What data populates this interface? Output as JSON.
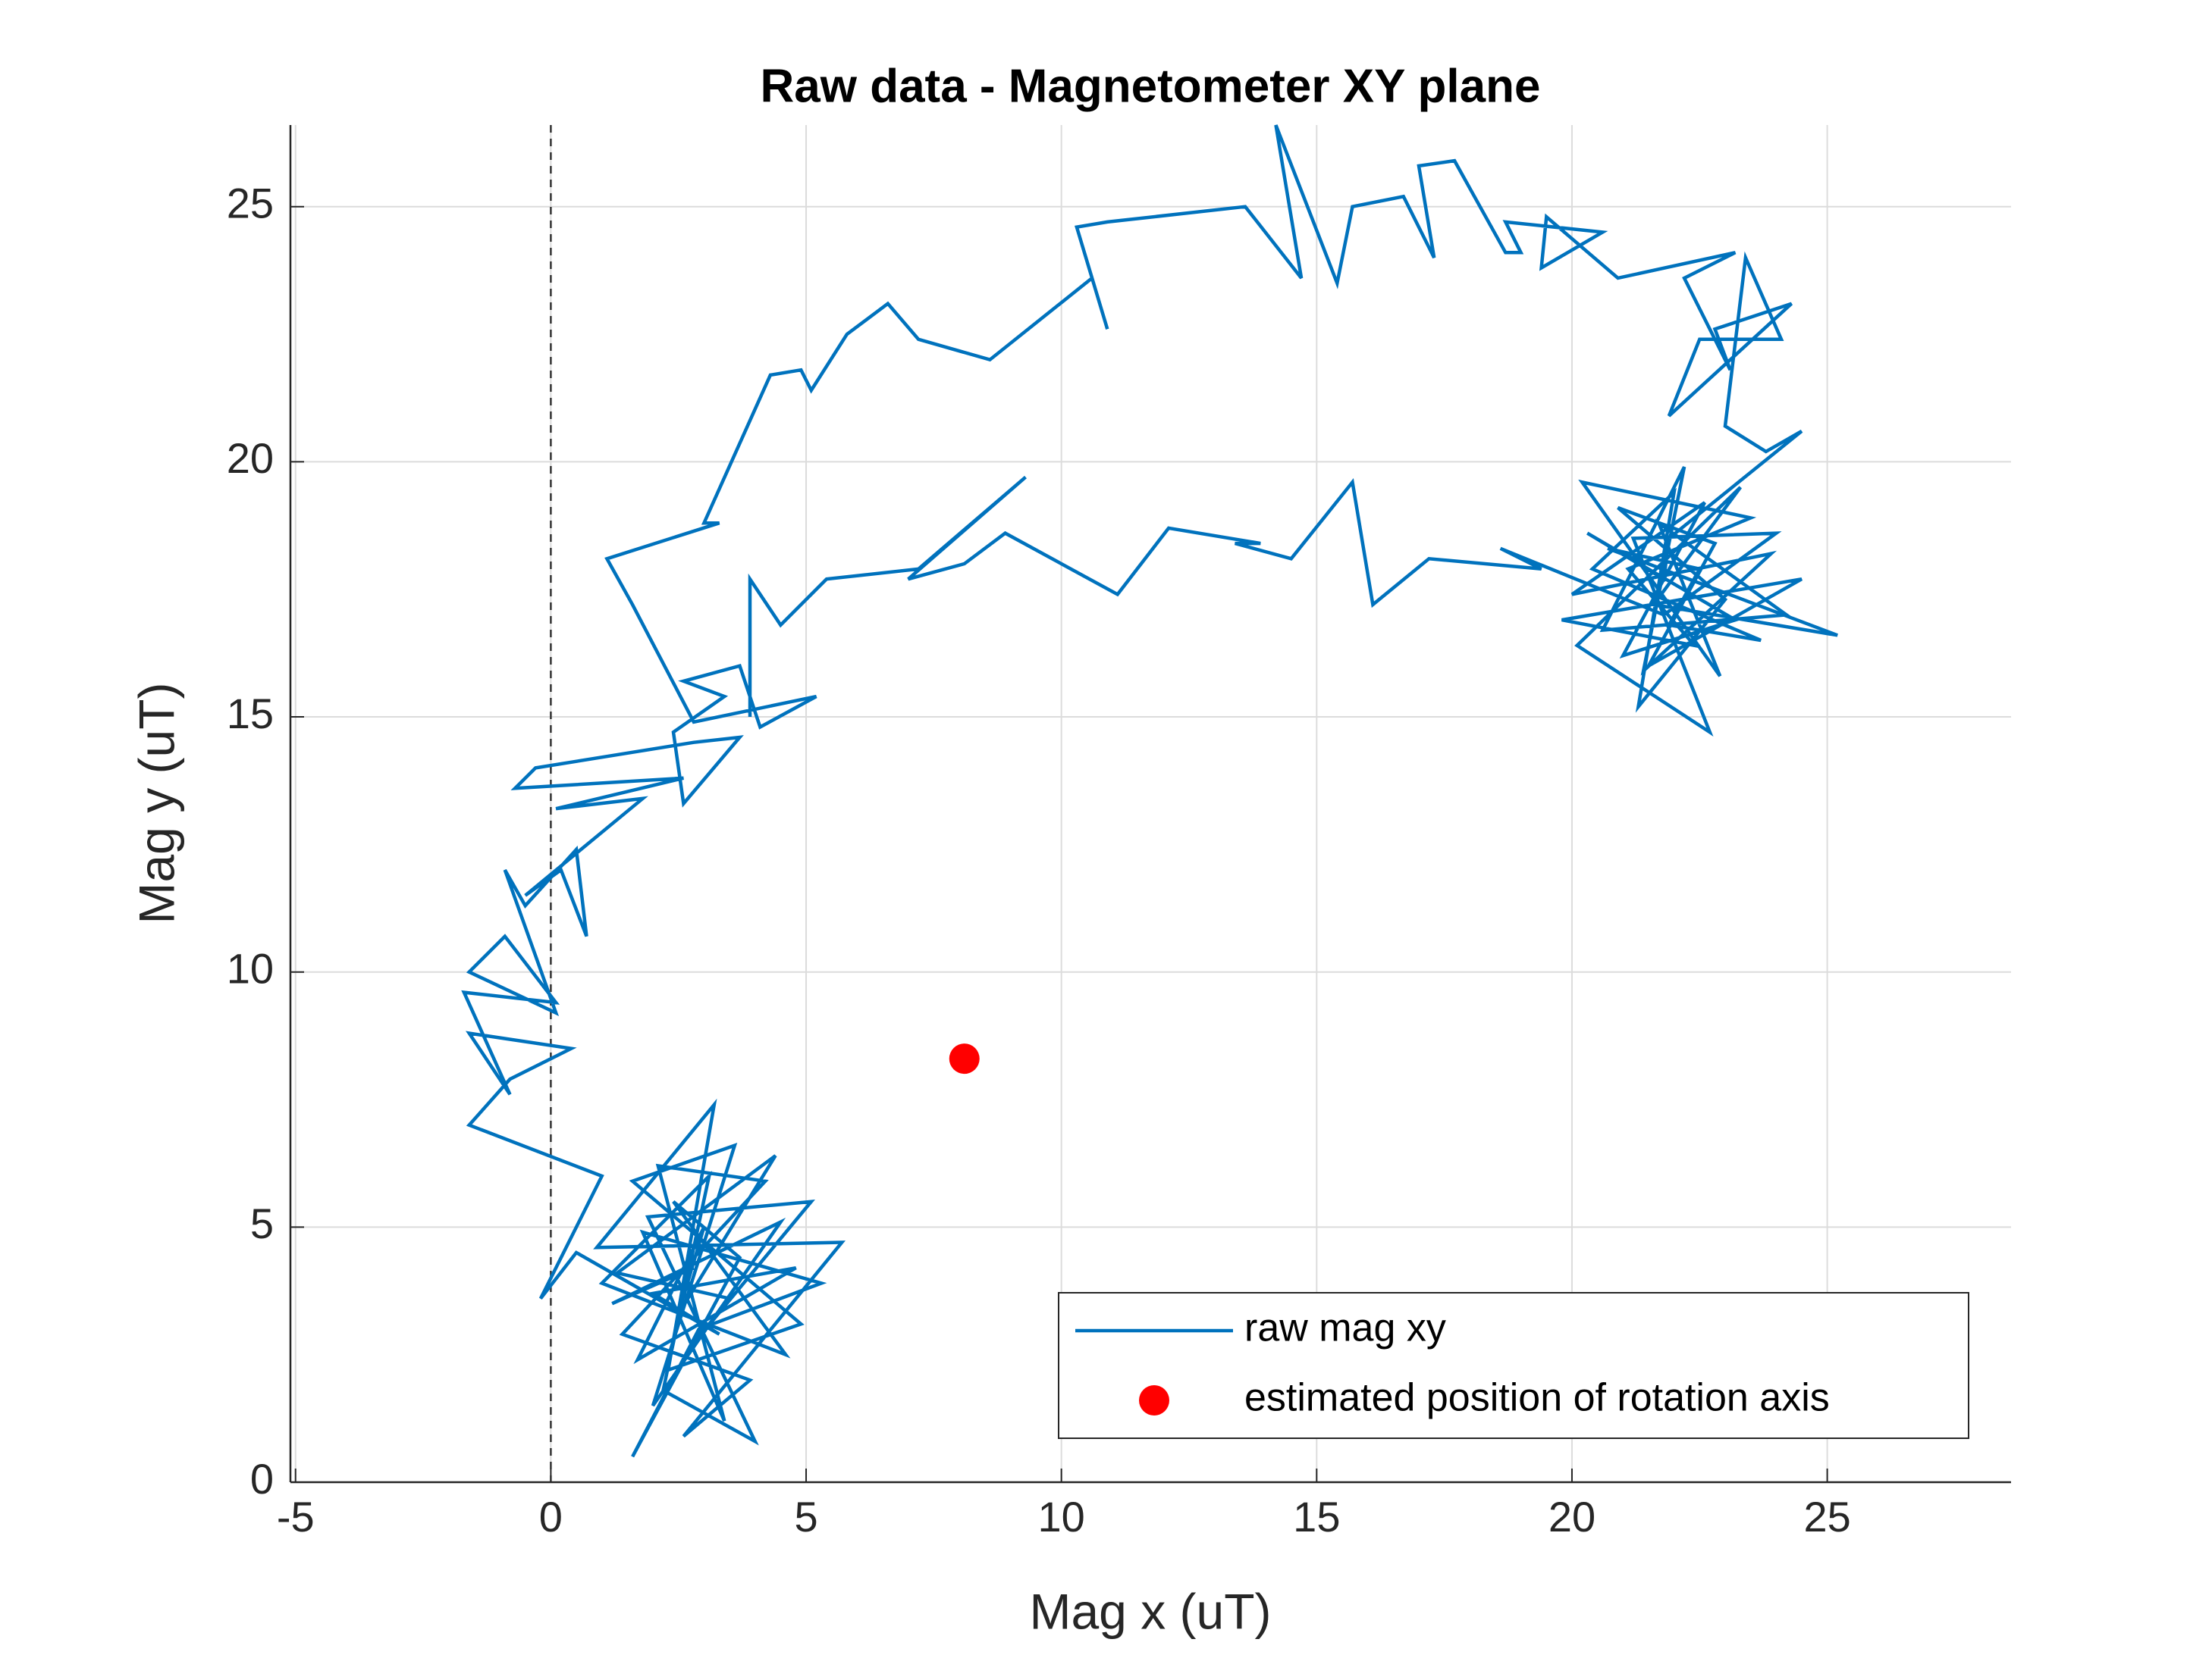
{
  "chart_data": {
    "type": "line",
    "title": "Raw data - Magnetometer XY plane",
    "xlabel": "Mag x (uT)",
    "ylabel": "Mag y (uT)",
    "xlim": [
      -5.1,
      28.6
    ],
    "ylim": [
      0,
      26.6
    ],
    "xticks": [
      -5,
      0,
      5,
      10,
      15,
      20,
      25
    ],
    "yticks": [
      0,
      5,
      10,
      15,
      20,
      25
    ],
    "grid": true,
    "legend": "southeast",
    "reference_lines": [
      {
        "axis": "x",
        "value": 0,
        "style": "dashed",
        "color": "#333333"
      }
    ],
    "series": [
      {
        "name": "raw mag xy",
        "color": "#0072bd",
        "type": "line",
        "x": [
          2.8,
          1.2,
          4.5,
          2.0,
          3.6,
          1.6,
          4.9,
          2.3,
          3.2,
          0.9,
          5.7,
          2.6,
          3.9,
          1.4,
          4.2,
          2.1,
          3.4,
          1.8,
          5.3,
          2.9,
          1.6,
          3.7,
          2.4,
          4.6,
          1.0,
          3.1,
          2.2,
          4.0,
          1.9,
          5.1,
          2.7,
          3.5,
          1.3,
          4.4,
          2.5,
          3.0,
          1.7,
          4.8,
          2.0,
          3.3,
          0.5,
          -0.2,
          1.0,
          -1.6,
          -0.8,
          0.4,
          -1.6,
          -0.8,
          -1.7,
          0.1,
          -0.9,
          -1.6,
          0.1,
          -0.9,
          -0.5,
          0.5,
          0.7,
          0.2,
          -0.5,
          1.8,
          0.1,
          2.6,
          -0.7,
          -0.3,
          2.8,
          3.7,
          2.6,
          2.4,
          3.4,
          2.6,
          3.7,
          4.1,
          5.2,
          2.8,
          1.6,
          1.1,
          3.3,
          3.0,
          4.3,
          4.9,
          5.1,
          5.8,
          6.6,
          7.2,
          8.6,
          10.6,
          10.9,
          10.3,
          10.9,
          13.6,
          14.7,
          14.2,
          15.4,
          15.7,
          16.7,
          17.3,
          17.0,
          17.7,
          18.7,
          19.0,
          18.7,
          20.6,
          19.4,
          19.5,
          20.9,
          23.2,
          22.2,
          23.1,
          22.8,
          24.3,
          21.9,
          22.5,
          24.1,
          23.4,
          23.0,
          23.8,
          24.5,
          21.9,
          21.8,
          20.3,
          23.2,
          21.0,
          22.6,
          20.0,
          23.9,
          21.4,
          22.2,
          20.6,
          24.2,
          21.7,
          22.9,
          20.2,
          23.5,
          21.1,
          22.4,
          19.8,
          24.5,
          21.5,
          22.8,
          20.9,
          23.0,
          21.3,
          22.0,
          20.4,
          23.7,
          21.9,
          22.5,
          20.7,
          25.2,
          21.6,
          23.3,
          20.1,
          22.7,
          21.2,
          24.0,
          21.8,
          18.6,
          19.4,
          17.2,
          16.1,
          15.7,
          14.5,
          13.4,
          13.9,
          12.1,
          11.1,
          8.9,
          8.1,
          7.0,
          9.3,
          7.2,
          5.4,
          4.5,
          3.9,
          3.9
        ],
        "values": [
          4.2,
          3.5,
          5.1,
          1.5,
          6.6,
          5.9,
          3.1,
          2.2,
          7.4,
          4.6,
          4.7,
          0.9,
          2.0,
          2.9,
          5.9,
          6.2,
          1.2,
          4.9,
          3.9,
          3.0,
          0.5,
          4.4,
          5.5,
          2.5,
          3.9,
          6.0,
          1.8,
          0.8,
          5.2,
          5.5,
          2.6,
          3.6,
          4.1,
          6.4,
          3.3,
          5.0,
          2.4,
          4.2,
          3.7,
          2.9,
          4.5,
          3.6,
          6.0,
          7.0,
          7.9,
          8.5,
          8.8,
          7.6,
          9.6,
          9.4,
          10.7,
          10.0,
          9.2,
          12.0,
          11.3,
          12.4,
          10.7,
          12.0,
          11.5,
          13.4,
          13.2,
          13.8,
          13.6,
          14.0,
          14.5,
          14.6,
          13.3,
          14.7,
          15.4,
          15.7,
          16.0,
          14.8,
          15.4,
          14.9,
          17.2,
          18.1,
          18.8,
          18.8,
          21.7,
          21.8,
          21.4,
          22.5,
          23.1,
          22.4,
          22.0,
          23.6,
          22.6,
          24.6,
          24.7,
          25.0,
          23.6,
          26.6,
          23.5,
          25.0,
          25.2,
          24.0,
          25.8,
          25.9,
          24.1,
          24.1,
          24.7,
          24.5,
          23.8,
          24.8,
          23.6,
          24.1,
          23.6,
          21.8,
          22.6,
          23.1,
          20.9,
          22.4,
          22.4,
          24.0,
          20.7,
          20.2,
          20.6,
          18.5,
          17.7,
          18.6,
          16.9,
          16.2,
          19.2,
          17.4,
          18.2,
          15.9,
          19.9,
          16.7,
          17.0,
          18.8,
          15.8,
          19.6,
          18.9,
          17.9,
          16.4,
          16.9,
          17.7,
          16.0,
          18.4,
          19.1,
          17.3,
          15.2,
          19.4,
          17.9,
          16.5,
          16.8,
          17.9,
          18.3,
          16.6,
          17.2,
          19.5,
          16.4,
          14.7,
          18.5,
          18.6,
          17.0,
          18.3,
          17.9,
          18.1,
          17.2,
          19.6,
          18.1,
          18.4,
          18.4,
          18.7,
          17.4,
          18.6,
          18.0,
          17.7,
          19.7,
          17.9,
          17.7,
          16.8,
          17.7,
          15.0
        ]
      },
      {
        "name": "estimated position of rotation axis",
        "color": "#ff0000",
        "type": "scatter",
        "x": [
          8.1
        ],
        "values": [
          8.3
        ]
      }
    ]
  }
}
